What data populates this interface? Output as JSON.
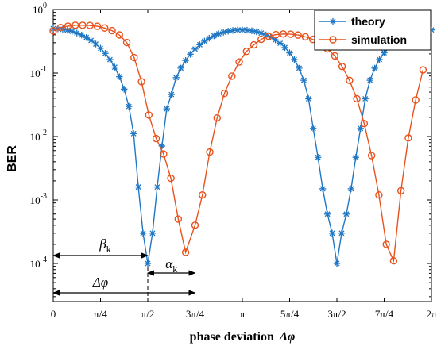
{
  "chart_data": {
    "type": "line",
    "title": "",
    "xlabel": "phase deviation",
    "xlabel_symbol": "Δφ",
    "ylabel": "BER",
    "xlim": [
      0,
      6.2832
    ],
    "ylim_log10": [
      -4.6,
      0
    ],
    "y_scale": "log",
    "grid": false,
    "legend_position": "top-right",
    "x_ticks": [
      {
        "value": 0,
        "label": "0"
      },
      {
        "value": 0.7854,
        "label": "π/4"
      },
      {
        "value": 1.5708,
        "label": "π/2"
      },
      {
        "value": 2.3562,
        "label": "3π/4"
      },
      {
        "value": 3.1416,
        "label": "π"
      },
      {
        "value": 3.927,
        "label": "5π/4"
      },
      {
        "value": 4.7124,
        "label": "3π/2"
      },
      {
        "value": 5.4978,
        "label": "7π/4"
      },
      {
        "value": 6.2832,
        "label": "2π"
      }
    ],
    "y_ticks": [
      {
        "exp": 0,
        "label": "0"
      },
      {
        "exp": -1,
        "label": "-1"
      },
      {
        "exp": -2,
        "label": "-2"
      },
      {
        "exp": -3,
        "label": "-3"
      },
      {
        "exp": -4,
        "label": "-4"
      }
    ],
    "y_tick_base": "10",
    "series": [
      {
        "name": "theory",
        "color": "#1f77c4",
        "marker": "asterisk",
        "x": [
          0.0,
          0.0785,
          0.1571,
          0.2356,
          0.3142,
          0.3927,
          0.4712,
          0.5498,
          0.6283,
          0.7069,
          0.7854,
          0.864,
          0.9425,
          1.021,
          1.0996,
          1.1781,
          1.2566,
          1.3352,
          1.4137,
          1.4923,
          1.5708,
          1.6493,
          1.7279,
          1.8064,
          1.885,
          1.9635,
          2.042,
          2.1206,
          2.1991,
          2.2777,
          2.3562,
          2.4347,
          2.5133,
          2.5918,
          2.6704,
          2.7489,
          2.8274,
          2.906,
          2.9845,
          3.0631,
          3.1416,
          3.2201,
          3.2987,
          3.3772,
          3.4558,
          3.5343,
          3.6128,
          3.6914,
          3.7699,
          3.8485,
          3.927,
          4.0055,
          4.0841,
          4.1626,
          4.2412,
          4.3197,
          4.3982,
          4.4768,
          4.5553,
          4.6339,
          4.7124,
          4.7909,
          4.8695,
          4.948,
          5.0265,
          5.1051,
          5.1836,
          5.2622,
          5.3407,
          5.4192,
          5.4978,
          5.5763,
          5.6549,
          5.7334,
          5.812,
          5.8905,
          5.969,
          6.0476,
          6.1261,
          6.2047,
          6.2832
        ],
        "y": [
          0.5,
          0.497,
          0.488,
          0.473,
          0.453,
          0.427,
          0.397,
          0.363,
          0.3258,
          0.2863,
          0.2453,
          0.2038,
          0.1629,
          0.1237,
          0.0875,
          0.0557,
          0.0297,
          0.0111,
          0.0016,
          0.0003,
          0.0001,
          0.0003,
          0.0016,
          0.0071,
          0.0273,
          0.0459,
          0.0846,
          0.1195,
          0.1577,
          0.1978,
          0.2386,
          0.2789,
          0.3175,
          0.3534,
          0.3859,
          0.4142,
          0.4378,
          0.4561,
          0.4689,
          0.4761,
          0.4775,
          0.4731,
          0.463,
          0.4472,
          0.4259,
          0.3995,
          0.3683,
          0.3328,
          0.2938,
          0.2519,
          0.208,
          0.1633,
          0.1191,
          0.0769,
          0.0393,
          0.0134,
          0.0047,
          0.0015,
          0.0006,
          0.0003,
          0.0001,
          0.0003,
          0.0006,
          0.0015,
          0.0047,
          0.0134,
          0.0393,
          0.0769,
          0.1191,
          0.1633,
          0.208,
          0.2519,
          0.2938,
          0.3328,
          0.3683,
          0.3995,
          0.4259,
          0.4472,
          0.463,
          0.4731,
          0.4775
        ]
      },
      {
        "name": "simulation",
        "color": "#e8521c",
        "marker": "circle",
        "x": [
          0.0,
          0.1222,
          0.2443,
          0.3665,
          0.4887,
          0.6109,
          0.733,
          0.8552,
          0.9774,
          1.0996,
          1.2217,
          1.3439,
          1.4661,
          1.5883,
          1.7104,
          1.8326,
          1.9548,
          2.077,
          2.1991,
          2.3562,
          2.4784,
          2.6006,
          2.7227,
          2.8449,
          2.9671,
          3.0893,
          3.2114,
          3.3336,
          3.4558,
          3.578,
          3.7001,
          3.8223,
          3.9445,
          4.0667,
          4.1888,
          4.311,
          4.4332,
          4.5553,
          4.6775,
          4.7997,
          4.9219,
          5.044,
          5.1662,
          5.2884,
          5.4106,
          5.5327,
          5.6549,
          5.7771,
          5.8992,
          6.0214,
          6.1436
        ],
        "y": [
          0.46,
          0.52,
          0.548,
          0.565,
          0.566,
          0.562,
          0.545,
          0.512,
          0.465,
          0.398,
          0.302,
          0.175,
          0.073,
          0.0218,
          0.0093,
          0.0053,
          0.0022,
          0.0005,
          0.00015,
          0.0004,
          0.0012,
          0.0057,
          0.0196,
          0.0478,
          0.0893,
          0.1494,
          0.2193,
          0.2774,
          0.3396,
          0.3786,
          0.4026,
          0.4122,
          0.4093,
          0.3968,
          0.3719,
          0.3386,
          0.2966,
          0.2406,
          0.1862,
          0.1265,
          0.0764,
          0.0393,
          0.016,
          0.005,
          0.0012,
          0.0002,
          0.00011,
          0.0014,
          0.0095,
          0.0376,
          0.1122
        ]
      }
    ],
    "annotations": {
      "beta": {
        "symbol": "β",
        "sub": "k",
        "x_from": 0,
        "x_to": 1.5708
      },
      "alpha": {
        "symbol": "α",
        "sub": "k",
        "x_from": 1.5708,
        "x_to": 2.3562
      },
      "delta": {
        "symbol": "Δφ",
        "x_from": 0,
        "x_to": 2.3562
      }
    }
  }
}
